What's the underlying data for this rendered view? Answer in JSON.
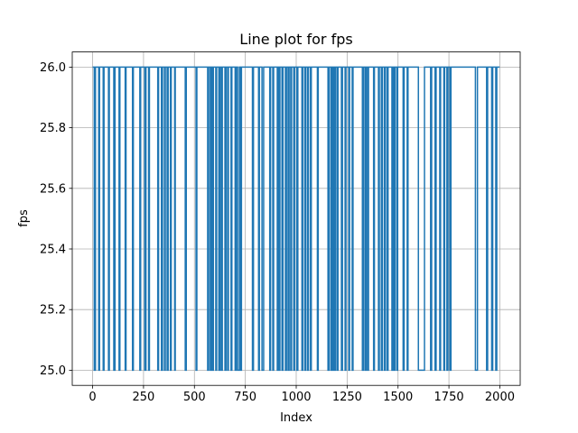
{
  "chart_data": {
    "type": "line",
    "title": "Line plot for fps",
    "xlabel": "Index",
    "ylabel": "fps",
    "xlim": [
      -100,
      2100
    ],
    "ylim": [
      24.95,
      26.05
    ],
    "x_ticks": [
      0,
      250,
      500,
      750,
      1000,
      1250,
      1500,
      1750,
      2000
    ],
    "y_ticks": [
      25.0,
      25.2,
      25.4,
      25.6,
      25.8,
      26.0
    ],
    "x_tick_labels": [
      "0",
      "250",
      "500",
      "750",
      "1000",
      "1250",
      "1500",
      "1750",
      "2000"
    ],
    "y_tick_labels": [
      "25.0",
      "25.2",
      "25.4",
      "25.6",
      "25.8",
      "26.0"
    ],
    "grid": true,
    "series": [
      {
        "color": "#1f77b4",
        "baseline": 26.0,
        "low_value": 25.0,
        "x_range": [
          0,
          1999
        ],
        "low_intervals": [
          [
            8,
            14
          ],
          [
            30,
            34
          ],
          [
            52,
            56
          ],
          [
            78,
            82
          ],
          [
            104,
            110
          ],
          [
            130,
            134
          ],
          [
            160,
            164
          ],
          [
            196,
            200
          ],
          [
            232,
            236
          ],
          [
            256,
            262
          ],
          [
            275,
            279
          ],
          [
            320,
            324
          ],
          [
            338,
            343
          ],
          [
            353,
            357
          ],
          [
            366,
            371
          ],
          [
            382,
            386
          ],
          [
            403,
            406
          ],
          [
            455,
            460
          ],
          [
            508,
            512
          ],
          [
            565,
            570
          ],
          [
            578,
            582
          ],
          [
            588,
            593
          ],
          [
            605,
            609
          ],
          [
            620,
            625
          ],
          [
            632,
            637
          ],
          [
            650,
            655
          ],
          [
            663,
            667
          ],
          [
            680,
            684
          ],
          [
            700,
            705
          ],
          [
            712,
            721
          ],
          [
            727,
            731
          ],
          [
            785,
            790
          ],
          [
            815,
            819
          ],
          [
            832,
            840
          ],
          [
            870,
            874
          ],
          [
            885,
            889
          ],
          [
            907,
            912
          ],
          [
            916,
            920
          ],
          [
            930,
            935
          ],
          [
            947,
            952
          ],
          [
            960,
            965
          ],
          [
            973,
            977
          ],
          [
            988,
            992
          ],
          [
            1003,
            1008
          ],
          [
            1028,
            1032
          ],
          [
            1042,
            1046
          ],
          [
            1055,
            1060
          ],
          [
            1070,
            1074
          ],
          [
            1104,
            1108
          ],
          [
            1156,
            1161
          ],
          [
            1170,
            1175
          ],
          [
            1180,
            1184
          ],
          [
            1187,
            1192
          ],
          [
            1200,
            1205
          ],
          [
            1222,
            1227
          ],
          [
            1240,
            1244
          ],
          [
            1258,
            1262
          ],
          [
            1275,
            1279
          ],
          [
            1325,
            1330
          ],
          [
            1338,
            1343
          ],
          [
            1350,
            1355
          ],
          [
            1380,
            1384
          ],
          [
            1404,
            1408
          ],
          [
            1418,
            1423
          ],
          [
            1433,
            1438
          ],
          [
            1447,
            1451
          ],
          [
            1470,
            1474
          ],
          [
            1480,
            1485
          ],
          [
            1494,
            1498
          ],
          [
            1525,
            1530
          ],
          [
            1545,
            1549
          ],
          [
            1600,
            1630
          ],
          [
            1660,
            1665
          ],
          [
            1682,
            1687
          ],
          [
            1705,
            1709
          ],
          [
            1725,
            1729
          ],
          [
            1740,
            1745
          ],
          [
            1755,
            1760
          ],
          [
            1880,
            1890
          ],
          [
            1935,
            1940
          ],
          [
            1960,
            1965
          ],
          [
            1980,
            1985
          ]
        ]
      }
    ]
  }
}
